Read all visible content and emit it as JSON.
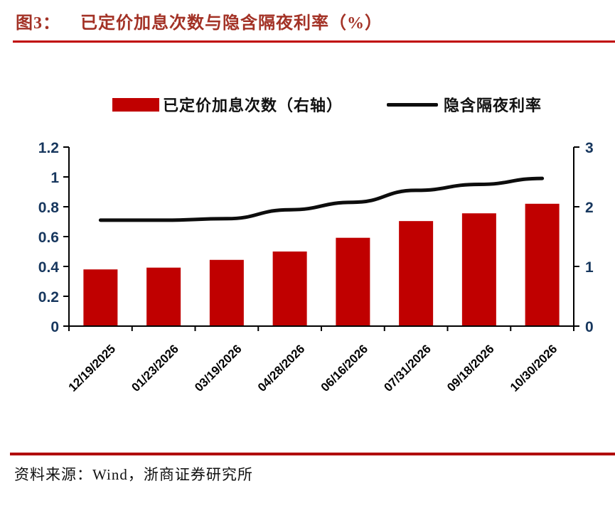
{
  "header": {
    "figure_label": "图3：",
    "title": "已定价加息次数与隐含隔夜利率（%）"
  },
  "legend": [
    {
      "swatch": "bar-swatch",
      "label": "已定价加息次数（右轴）",
      "color": "#C00000"
    },
    {
      "swatch": "line-swatch",
      "label": "隐含隔夜利率",
      "color": "#0D0D0D"
    }
  ],
  "chart_data": {
    "type": "bar",
    "categories": [
      "12/19/2025",
      "01/23/2026",
      "03/19/2026",
      "04/28/2026",
      "06/16/2026",
      "07/31/2026",
      "09/18/2026",
      "10/30/2026"
    ],
    "series": [
      {
        "name": "已定价加息次数（右轴）",
        "type": "bar",
        "axis": "right",
        "color": "#C00000",
        "values": [
          0.95,
          0.98,
          1.11,
          1.25,
          1.48,
          1.76,
          1.89,
          2.05
        ]
      },
      {
        "name": "隐含隔夜利率",
        "type": "line",
        "axis": "left",
        "color": "#0D0D0D",
        "values": [
          0.71,
          0.71,
          0.72,
          0.78,
          0.83,
          0.91,
          0.95,
          0.99
        ]
      }
    ],
    "left_axis": {
      "min": 0,
      "max": 1.2,
      "ticks": [
        "0",
        "0.2",
        "0.4",
        "0.6",
        "0.8",
        "1",
        "1.2"
      ]
    },
    "right_axis": {
      "min": 0,
      "max": 3,
      "ticks": [
        "0",
        "1",
        "2",
        "3"
      ]
    },
    "grid": "off",
    "legend_position": "top",
    "tick_label_color": "#17375E",
    "date_label_color": "#000000",
    "axis_line_color": "#000000"
  },
  "footer": {
    "source": "资料来源：Wind，浙商证券研究所"
  }
}
